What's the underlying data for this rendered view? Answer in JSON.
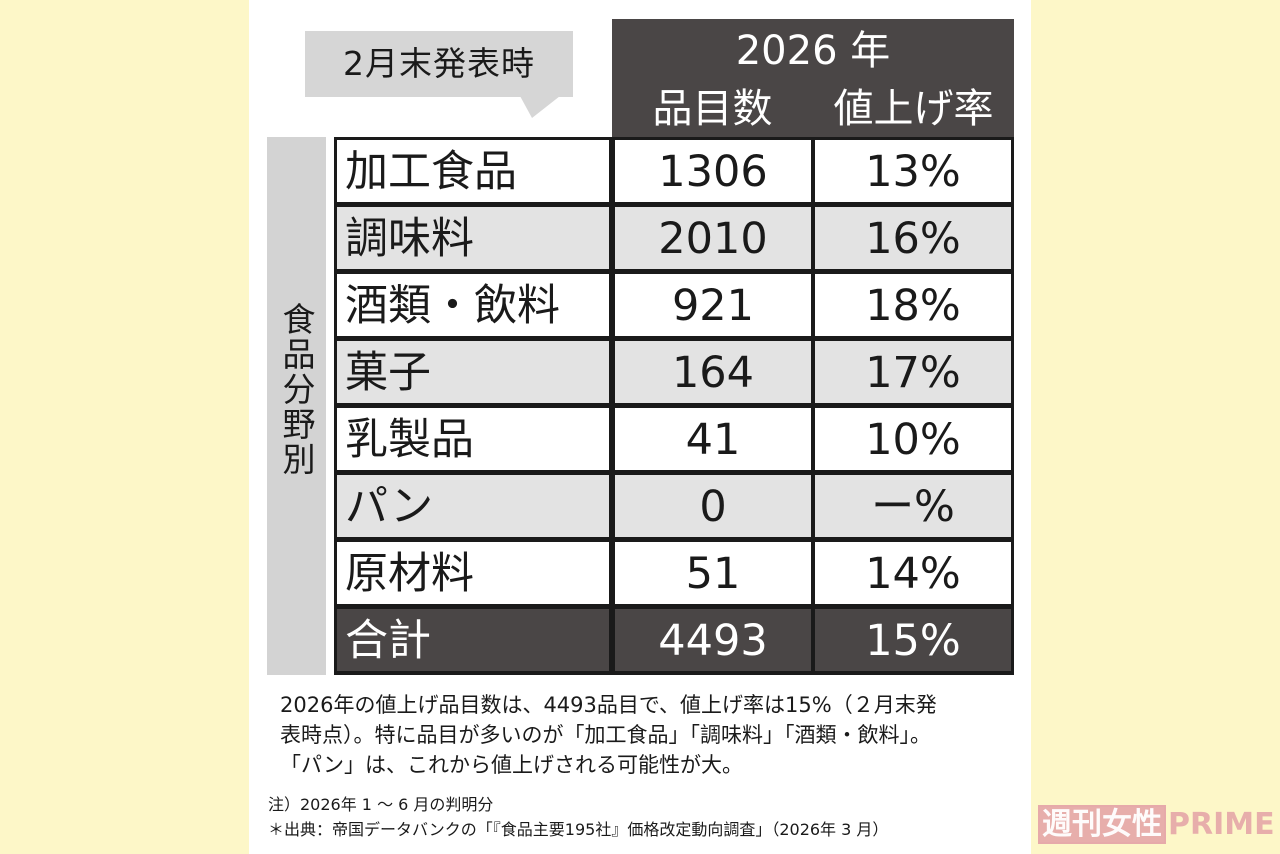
{
  "header": {
    "badge": "2月末発表時",
    "year": "2026 年",
    "col_count": "品目数",
    "col_rate": "値上げ率"
  },
  "side_label": "食品分野別",
  "chart_data": {
    "type": "table",
    "columns": [
      "品目数",
      "値上げ率"
    ],
    "rows": [
      {
        "category": "加工食品",
        "count": "1306",
        "rate": "13%"
      },
      {
        "category": "調味料",
        "count": "2010",
        "rate": "16%"
      },
      {
        "category": "酒類・飲料",
        "count": "921",
        "rate": "18%"
      },
      {
        "category": "菓子",
        "count": "164",
        "rate": "17%"
      },
      {
        "category": "乳製品",
        "count": "41",
        "rate": "10%"
      },
      {
        "category": "パン",
        "count": "0",
        "rate": "ー%"
      },
      {
        "category": "原材料",
        "count": "51",
        "rate": "14%"
      }
    ],
    "total": {
      "category": "合計",
      "count": "4493",
      "rate": "15%"
    }
  },
  "caption": {
    "line1": "2026年の値上げ品目数は、4493品目で、値上げ率は15%（２月末発",
    "line2": "表時点）。特に品目が多いのが「加工食品」「調味料」「酒類・飲料」。",
    "line3": "「パン」は、これから値上げされる可能性が大。"
  },
  "notes": {
    "line1": "注）2026年 1 〜 6 月の判明分",
    "line2": "＊出典：帝国データバンクの「『食品主要195社』価格改定動向調査」（2026年 3 月）"
  },
  "watermark": {
    "ja": "週刊女性",
    "en": "PRIME"
  },
  "colors": {
    "header_bg": "#4a4646",
    "row_odd": "#ffffff",
    "row_even": "#e3e3e3",
    "page_bg": "#fdf7c8"
  }
}
